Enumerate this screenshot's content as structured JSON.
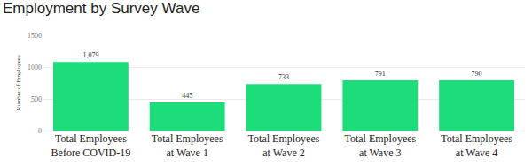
{
  "chart_data": {
    "type": "bar",
    "title": "Employment by Survey Wave",
    "categories": [
      "Total Employees Before COVID-19",
      "Total Employees at Wave 1",
      "Total Employees at Wave 2",
      "Total Employees at Wave 3",
      "Total Employees at Wave 4"
    ],
    "values": [
      1079,
      445,
      733,
      791,
      790
    ],
    "value_labels": [
      "1,079",
      "445",
      "733",
      "791",
      "790"
    ],
    "data_labels": true,
    "color": "#1ddd7a",
    "y_label": "Number of Employees",
    "ylim": [
      0,
      1500
    ],
    "yticks": [
      0,
      500,
      1000,
      1500
    ],
    "grid": true
  }
}
